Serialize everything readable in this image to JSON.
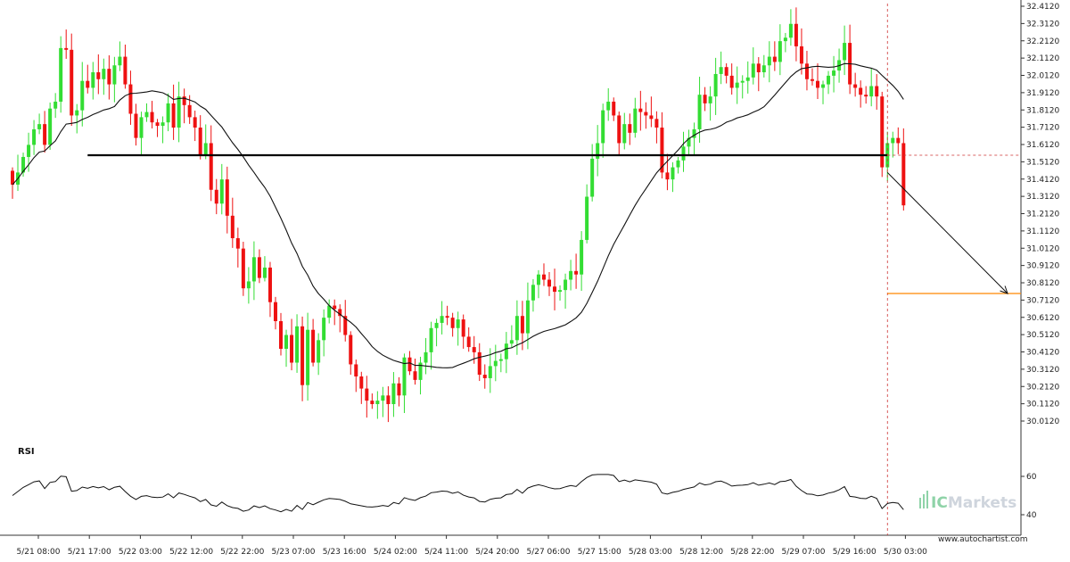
{
  "chart_data": {
    "type": "candlestick",
    "indicator_label": "RSI",
    "watermark": {
      "prefix": "IC",
      "suffix": "Markets"
    },
    "site_label": "www.autochartist.com",
    "y_ticks": [
      "32.4120",
      "32.3120",
      "32.2120",
      "32.1120",
      "32.0120",
      "31.9120",
      "31.8120",
      "31.7120",
      "31.6120",
      "31.5120",
      "31.4120",
      "31.3120",
      "31.2120",
      "31.1120",
      "31.0120",
      "30.9120",
      "30.8120",
      "30.7120",
      "30.6120",
      "30.5120",
      "30.4120",
      "30.3120",
      "30.2120",
      "30.1120",
      "30.0120"
    ],
    "ylim": [
      30.012,
      32.412
    ],
    "rsi_ticks": [
      "60",
      "40"
    ],
    "rsi_ylim": [
      40,
      60
    ],
    "x_ticks": [
      "5/21 08:00",
      "5/21 17:00",
      "5/22 03:00",
      "5/22 12:00",
      "5/22 22:00",
      "5/23 07:00",
      "5/23 16:00",
      "5/24 02:00",
      "5/24 11:00",
      "5/24 20:00",
      "5/27 06:00",
      "5/27 15:00",
      "5/28 03:00",
      "5/28 12:00",
      "5/28 22:00",
      "5/29 07:00",
      "5/29 16:00",
      "5/30 03:00"
    ],
    "support_level": 31.55,
    "target_level": 30.75,
    "forecast": {
      "from_close": 31.45,
      "to_value": 30.75
    },
    "colors": {
      "up": "#33dd33",
      "down": "#ee1111",
      "ma": "#111111",
      "level": "#000000",
      "target": "#ff8800",
      "dashed": "#cc3333"
    },
    "closes": [
      31.38,
      31.45,
      31.54,
      31.61,
      31.7,
      31.73,
      31.61,
      31.82,
      31.86,
      32.17,
      32.16,
      31.78,
      31.81,
      31.98,
      31.94,
      32.03,
      31.99,
      32.05,
      31.96,
      32.07,
      32.12,
      31.96,
      31.79,
      31.65,
      31.77,
      31.8,
      31.74,
      31.72,
      31.74,
      31.85,
      31.71,
      31.89,
      31.84,
      31.77,
      31.71,
      31.55,
      31.62,
      31.35,
      31.27,
      31.41,
      31.2,
      31.07,
      31.01,
      30.78,
      30.82,
      30.96,
      30.84,
      30.9,
      30.7,
      30.59,
      30.43,
      30.51,
      30.35,
      30.56,
      30.22,
      30.54,
      30.35,
      30.48,
      30.61,
      30.68,
      30.66,
      30.62,
      30.51,
      30.34,
      30.27,
      30.2,
      30.13,
      30.11,
      30.13,
      30.16,
      30.11,
      30.23,
      30.16,
      30.38,
      30.3,
      30.25,
      30.35,
      30.41,
      30.55,
      30.58,
      30.62,
      30.61,
      30.55,
      30.6,
      30.5,
      30.44,
      30.41,
      30.28,
      30.26,
      30.33,
      30.36,
      30.37,
      30.46,
      30.48,
      30.62,
      30.52,
      30.71,
      30.8,
      30.86,
      30.83,
      30.79,
      30.76,
      30.77,
      30.83,
      30.88,
      30.86,
      31.06,
      31.31,
      31.53,
      31.62,
      31.81,
      31.86,
      31.78,
      31.62,
      31.73,
      31.68,
      31.82,
      31.8,
      31.78,
      31.76,
      31.71,
      31.45,
      31.41,
      31.48,
      31.52,
      31.6,
      31.65,
      31.7,
      31.9,
      31.85,
      31.89,
      32.02,
      32.06,
      32.01,
      31.94,
      31.97,
      31.98,
      32.0,
      32.08,
      32.03,
      32.07,
      32.12,
      32.09,
      32.21,
      32.23,
      32.31,
      32.18,
      32.08,
      31.99,
      31.98,
      31.94,
      31.96,
      32.01,
      32.04,
      32.1,
      32.2,
      31.96,
      31.94,
      31.9,
      31.89,
      31.95,
      31.89,
      31.48,
      31.62,
      31.65,
      31.62,
      31.26
    ]
  }
}
